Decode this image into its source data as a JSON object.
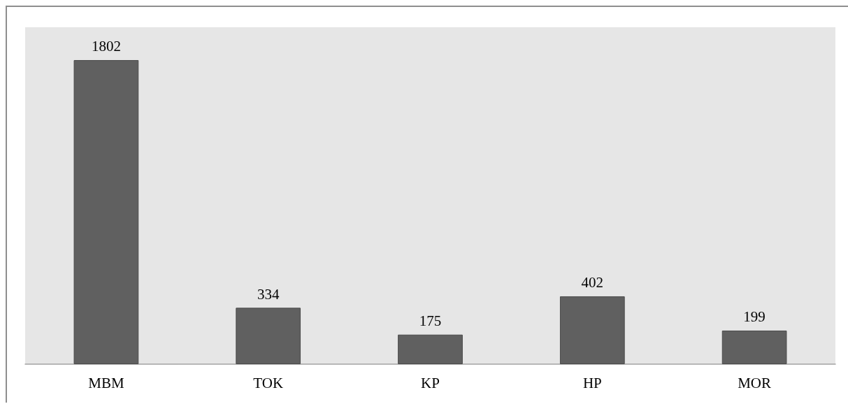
{
  "chart_data": {
    "type": "bar",
    "categories": [
      "MBM",
      "TOK",
      "KP",
      "HP",
      "MOR"
    ],
    "values": [
      1802,
      334,
      175,
      402,
      199
    ],
    "color": "#606060",
    "data_labels": true
  }
}
